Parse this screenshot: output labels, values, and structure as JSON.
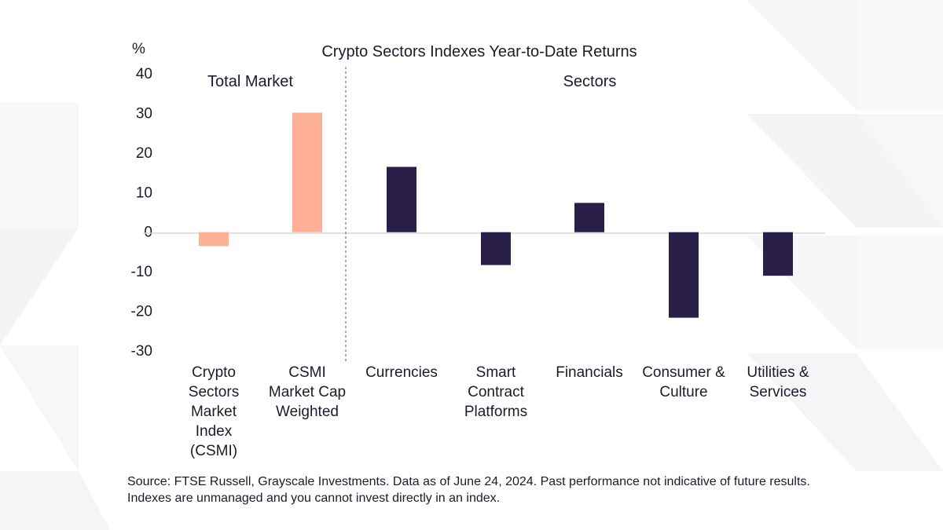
{
  "chart_data": {
    "type": "bar",
    "title": "Crypto Sectors Indexes Year-to-Date Returns",
    "y_unit_label": "%",
    "ylim": [
      -30,
      40
    ],
    "yticks": [
      40,
      30,
      20,
      10,
      0,
      -10,
      -20,
      -30
    ],
    "grid": false,
    "groups": [
      {
        "label": "Total Market",
        "start": 0,
        "end": 1
      },
      {
        "label": "Sectors",
        "start": 2,
        "end": 6
      }
    ],
    "categories": [
      [
        "Crypto",
        "Sectors",
        "Market",
        "Index",
        "(CSMI)"
      ],
      [
        "CSMI",
        "Market Cap",
        "Weighted"
      ],
      [
        "Currencies"
      ],
      [
        "Smart",
        "Contract",
        "Platforms"
      ],
      [
        "Financials"
      ],
      [
        "Consumer &",
        "Culture"
      ],
      [
        "Utilities &",
        "Services"
      ]
    ],
    "values": [
      -3.5,
      30.2,
      16.5,
      -8.3,
      7.4,
      -21.6,
      -11.0
    ],
    "colors": [
      "#fdb095",
      "#fdb095",
      "#2a1f48",
      "#2a1f48",
      "#2a1f48",
      "#2a1f48",
      "#2a1f48"
    ]
  },
  "footer": {
    "source": "Source: FTSE Russell, Grayscale Investments. Data as of June 24, 2024. Past performance not indicative of future results. Indexes are unmanaged and you cannot invest directly in an index."
  }
}
